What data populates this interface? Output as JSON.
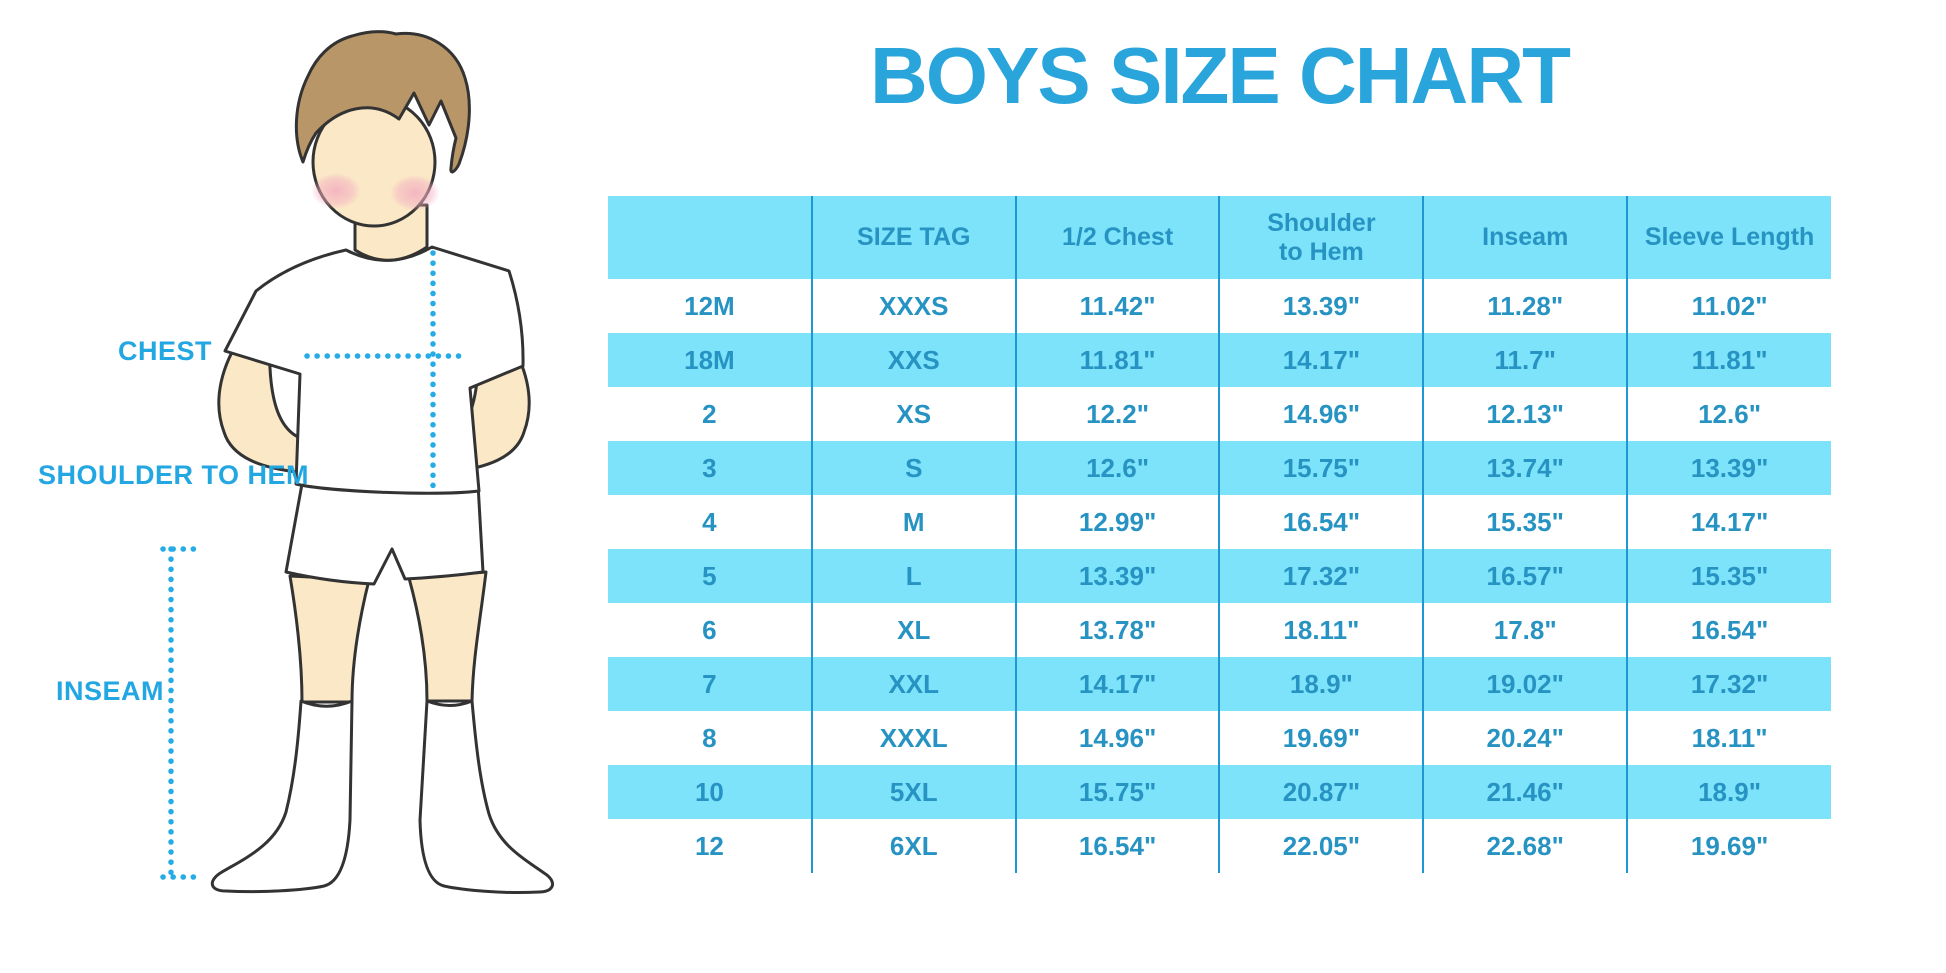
{
  "chart_data": {
    "type": "table",
    "title": "BOYS SIZE CHART",
    "columns": [
      "",
      "SIZE TAG",
      "1/2 Chest",
      "Shoulder to Hem",
      "Inseam",
      "Sleeve Length"
    ],
    "rows": [
      [
        "12M",
        "XXXS",
        "11.42\"",
        "13.39\"",
        "11.28\"",
        "11.02\""
      ],
      [
        "18M",
        "XXS",
        "11.81\"",
        "14.17\"",
        "11.7\"",
        "11.81\""
      ],
      [
        "2",
        "XS",
        "12.2\"",
        "14.96\"",
        "12.13\"",
        "12.6\""
      ],
      [
        "3",
        "S",
        "12.6\"",
        "15.75\"",
        "13.74\"",
        "13.39\""
      ],
      [
        "4",
        "M",
        "12.99\"",
        "16.54\"",
        "15.35\"",
        "14.17\""
      ],
      [
        "5",
        "L",
        "13.39\"",
        "17.32\"",
        "16.57\"",
        "15.35\""
      ],
      [
        "6",
        "XL",
        "13.78\"",
        "18.11\"",
        "17.8\"",
        "16.54\""
      ],
      [
        "7",
        "XXL",
        "14.17\"",
        "18.9\"",
        "19.02\"",
        "17.32\""
      ],
      [
        "8",
        "XXXL",
        "14.96\"",
        "19.69\"",
        "20.24\"",
        "18.11\""
      ],
      [
        "10",
        "5XL",
        "15.75\"",
        "20.87\"",
        "21.46\"",
        "18.9\""
      ],
      [
        "12",
        "6XL",
        "16.54\"",
        "22.05\"",
        "22.68\"",
        "19.69\""
      ]
    ],
    "layout": {
      "row_banding": "alternate starting white",
      "grid": "vertical column dividers only"
    }
  },
  "diagram": {
    "labels": {
      "chest": "CHEST",
      "shoulder_to_hem": "SHOULDER TO HEM",
      "inseam": "INSEAM"
    }
  },
  "colors": {
    "title_blue": "#29A5DC",
    "label_blue": "#23A7E2",
    "band_blue": "#7CE3FA",
    "divider_blue": "#1F97D3",
    "table_text_blue": "#2793C3",
    "dotted_line_blue": "#25ABE5",
    "skin": "#FBE8C6",
    "hair_brown": "#B99668",
    "blush_pink": "#F3AEC1",
    "outline": "#333333"
  }
}
